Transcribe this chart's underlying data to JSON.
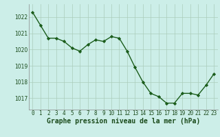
{
  "x": [
    0,
    1,
    2,
    3,
    4,
    5,
    6,
    7,
    8,
    9,
    10,
    11,
    12,
    13,
    14,
    15,
    16,
    17,
    18,
    19,
    20,
    21,
    22,
    23
  ],
  "y": [
    1022.3,
    1021.5,
    1020.7,
    1020.7,
    1020.5,
    1020.1,
    1019.9,
    1020.3,
    1020.6,
    1020.5,
    1020.8,
    1020.7,
    1019.9,
    1018.9,
    1018.0,
    1017.3,
    1017.1,
    1016.7,
    1016.7,
    1017.3,
    1017.3,
    1017.2,
    1017.8,
    1018.5
  ],
  "line_color": "#1a5c1a",
  "marker": "D",
  "marker_size": 2.2,
  "linewidth": 1.0,
  "bg_color": "#cceee8",
  "grid_color": "#aaccbb",
  "xlabel": "Graphe pression niveau de la mer (hPa)",
  "xlabel_fontsize": 7.0,
  "tick_fontsize": 5.5,
  "ylim": [
    1016.3,
    1022.8
  ],
  "yticks": [
    1017,
    1018,
    1019,
    1020,
    1021,
    1022
  ],
  "xticks": [
    0,
    1,
    2,
    3,
    4,
    5,
    6,
    7,
    8,
    9,
    10,
    11,
    12,
    13,
    14,
    15,
    16,
    17,
    18,
    19,
    20,
    21,
    22,
    23
  ],
  "xtick_labels": [
    "0",
    "1",
    "2",
    "3",
    "4",
    "5",
    "6",
    "7",
    "8",
    "9",
    "10",
    "11",
    "12",
    "13",
    "14",
    "15",
    "16",
    "17",
    "18",
    "19",
    "20",
    "21",
    "22",
    "23"
  ]
}
